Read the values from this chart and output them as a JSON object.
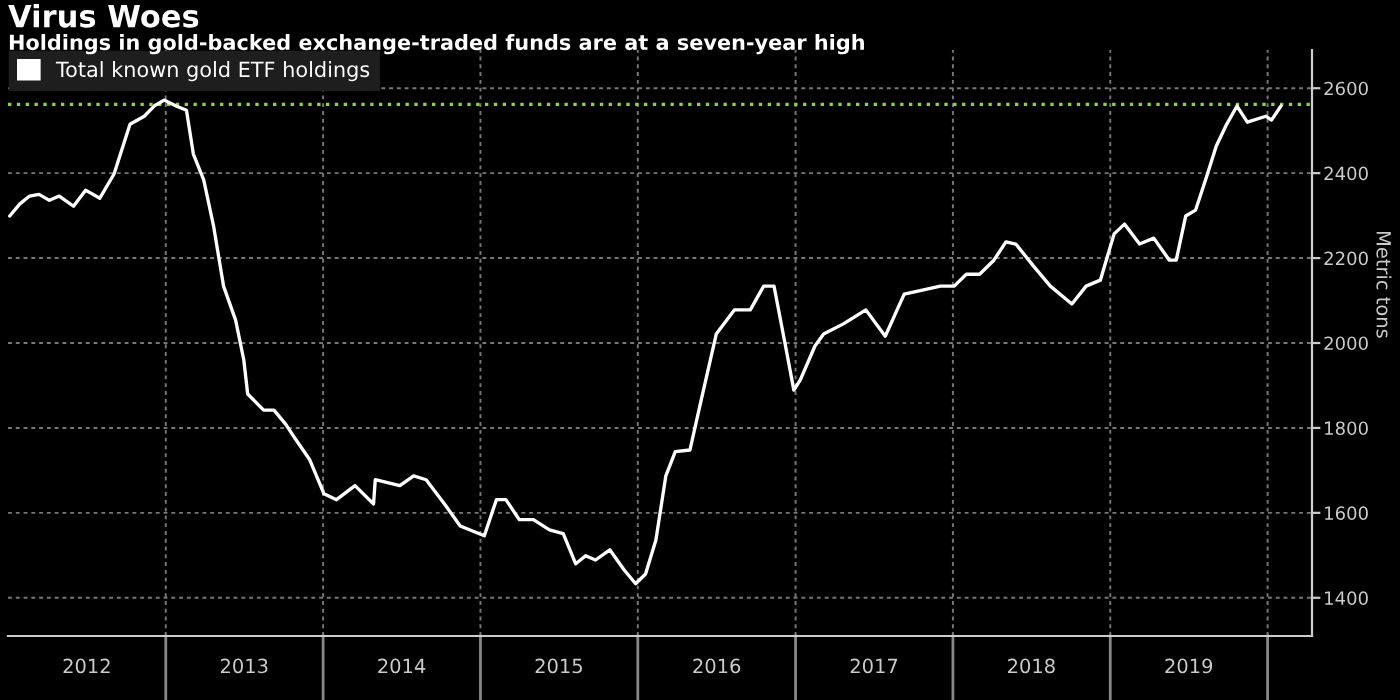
{
  "chart_data": {
    "type": "line",
    "title": "Virus Woes",
    "subtitle": "Holdings in gold-backed exchange-traded funds are at a seven-year high",
    "ylabel": "Metric tons",
    "x": [
      "2012-01-05",
      "2012-01-28",
      "2012-02-20",
      "2012-03-13",
      "2012-04-06",
      "2012-04-29",
      "2012-06-01",
      "2012-06-29",
      "2012-08-01",
      "2012-09-03",
      "2012-10-10",
      "2012-11-12",
      "2012-12-05",
      "2012-12-28",
      "2013-01-25",
      "2013-02-18",
      "2013-03-06",
      "2013-03-30",
      "2013-04-22",
      "2013-05-15",
      "2013-06-12",
      "2013-07-01",
      "2013-07-10",
      "2013-08-16",
      "2013-09-09",
      "2013-10-06",
      "2013-10-30",
      "2013-12-01",
      "2014-01-03",
      "2014-02-01",
      "2014-03-16",
      "2014-04-28",
      "2014-05-02",
      "2014-06-28",
      "2014-07-30",
      "2014-08-28",
      "2014-10-13",
      "2014-11-15",
      "2015-01-10",
      "2015-02-07",
      "2015-03-01",
      "2015-04-01",
      "2015-05-04",
      "2015-06-10",
      "2015-07-12",
      "2015-08-10",
      "2015-09-02",
      "2015-09-25",
      "2015-10-28",
      "2015-11-30",
      "2015-12-27",
      "2016-01-19",
      "2016-02-12",
      "2016-03-06",
      "2016-03-28",
      "2016-05-01",
      "2016-05-24",
      "2016-07-01",
      "2016-08-12",
      "2016-09-18",
      "2016-10-19",
      "2016-11-12",
      "2016-12-06",
      "2016-12-28",
      "2017-01-12",
      "2017-02-15",
      "2017-03-07",
      "2017-04-22",
      "2017-06-13",
      "2017-07-28",
      "2017-09-10",
      "2017-10-25",
      "2017-12-03",
      "2018-01-04",
      "2018-02-01",
      "2018-03-04",
      "2018-04-06",
      "2018-05-04",
      "2018-05-27",
      "2018-07-07",
      "2018-08-15",
      "2018-10-04",
      "2018-11-06",
      "2018-12-09",
      "2019-01-10",
      "2019-02-03",
      "2019-03-10",
      "2019-04-12",
      "2019-05-18",
      "2019-06-03",
      "2019-06-25",
      "2019-07-18",
      "2019-08-10",
      "2019-09-04",
      "2019-09-28",
      "2019-10-22",
      "2019-11-15",
      "2019-12-28",
      "2020-01-10",
      "2020-02-01"
    ],
    "series": [
      {
        "name": "Total known gold ETF holdings",
        "color": "#ffffff",
        "values": [
          2299,
          2327,
          2346,
          2350,
          2336,
          2346,
          2322,
          2360,
          2341,
          2398,
          2515,
          2534,
          2558,
          2572,
          2558,
          2548,
          2445,
          2384,
          2275,
          2134,
          2054,
          1960,
          1880,
          1842,
          1842,
          1809,
          1772,
          1725,
          1645,
          1631,
          1664,
          1621,
          1678,
          1664,
          1687,
          1678,
          1616,
          1569,
          1546,
          1631,
          1631,
          1584,
          1584,
          1560,
          1551,
          1480,
          1499,
          1489,
          1513,
          1466,
          1433,
          1456,
          1536,
          1687,
          1744,
          1748,
          1852,
          2021,
          2078,
          2078,
          2134,
          2134,
          2007,
          1889,
          1913,
          1993,
          2021,
          2045,
          2078,
          2016,
          2115,
          2125,
          2134,
          2134,
          2162,
          2162,
          2195,
          2238,
          2233,
          2181,
          2134,
          2092,
          2134,
          2148,
          2257,
          2280,
          2233,
          2247,
          2195,
          2195,
          2299,
          2313,
          2384,
          2464,
          2515,
          2558,
          2520,
          2534,
          2525,
          2558
        ]
      }
    ],
    "xlim": [
      "2012-01-01",
      "2020-04-13"
    ],
    "xticks": [
      {
        "value": "2012-07-02",
        "label": "2012"
      },
      {
        "value": "2013-01-01",
        "label": null
      },
      {
        "value": "2013-07-02",
        "label": "2013"
      },
      {
        "value": "2014-01-01",
        "label": null
      },
      {
        "value": "2014-07-02",
        "label": "2014"
      },
      {
        "value": "2015-01-01",
        "label": null
      },
      {
        "value": "2015-07-02",
        "label": "2015"
      },
      {
        "value": "2016-01-01",
        "label": null
      },
      {
        "value": "2016-07-02",
        "label": "2016"
      },
      {
        "value": "2017-01-01",
        "label": null
      },
      {
        "value": "2017-07-02",
        "label": "2017"
      },
      {
        "value": "2018-01-01",
        "label": null
      },
      {
        "value": "2018-07-02",
        "label": "2018"
      },
      {
        "value": "2019-01-01",
        "label": null
      },
      {
        "value": "2019-07-02",
        "label": "2019"
      },
      {
        "value": "2020-01-01",
        "label": null
      }
    ],
    "ylim": [
      1310,
      2690
    ],
    "yticks": [
      1400,
      1600,
      1800,
      2000,
      2200,
      2400,
      2600
    ],
    "ref_lines": [
      {
        "axis": "y",
        "value": 2562,
        "color": "#8fd14f",
        "line_style": "dotted"
      }
    ],
    "grid": true,
    "legend": "top left",
    "marker": "none",
    "line_style": "solid"
  }
}
